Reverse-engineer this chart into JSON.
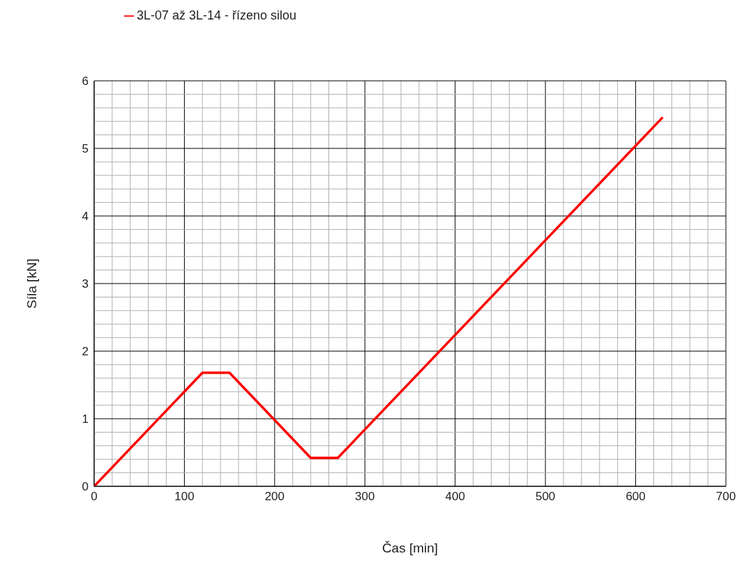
{
  "chart_data": {
    "type": "line",
    "xlabel": "Čas [min]",
    "ylabel": "Síla [kN]",
    "series": [
      {
        "name": "3L-07 až 3L-14 - řízeno silou",
        "color": "#ff0000",
        "x": [
          0,
          120,
          150,
          240,
          270,
          630
        ],
        "values": [
          0,
          1.68,
          1.68,
          0.42,
          0.42,
          5.46
        ]
      }
    ],
    "xlim": [
      0,
      700
    ],
    "xticks": [
      0,
      {
        "value": 20,
        "label": null
      },
      {
        "value": 40,
        "label": null
      },
      {
        "value": 60,
        "label": null
      },
      {
        "value": 80,
        "label": null
      },
      100,
      {
        "value": 120,
        "label": null
      },
      {
        "value": 140,
        "label": null
      },
      {
        "value": 160,
        "label": null
      },
      {
        "value": 180,
        "label": null
      },
      200,
      {
        "value": 220,
        "label": null
      },
      {
        "value": 240,
        "label": null
      },
      {
        "value": 260,
        "label": null
      },
      {
        "value": 280,
        "label": null
      },
      300,
      {
        "value": 320,
        "label": null
      },
      {
        "value": 340,
        "label": null
      },
      {
        "value": 360,
        "label": null
      },
      {
        "value": 380,
        "label": null
      },
      400,
      {
        "value": 420,
        "label": null
      },
      {
        "value": 440,
        "label": null
      },
      {
        "value": 460,
        "label": null
      },
      {
        "value": 480,
        "label": null
      },
      500,
      {
        "value": 520,
        "label": null
      },
      {
        "value": 540,
        "label": null
      },
      {
        "value": 560,
        "label": null
      },
      {
        "value": 580,
        "label": null
      },
      600,
      {
        "value": 620,
        "label": null
      },
      {
        "value": 640,
        "label": null
      },
      {
        "value": 660,
        "label": null
      },
      {
        "value": 680,
        "label": null
      },
      700
    ],
    "ylim": [
      0,
      6
    ],
    "yticks": [
      0,
      {
        "value": 0.2,
        "label": null
      },
      {
        "value": 0.4,
        "label": null
      },
      {
        "value": 0.6,
        "label": null
      },
      {
        "value": 0.8,
        "label": null
      },
      1,
      {
        "value": 1.2,
        "label": null
      },
      {
        "value": 1.4,
        "label": null
      },
      {
        "value": 1.6,
        "label": null
      },
      {
        "value": 1.8,
        "label": null
      },
      2,
      {
        "value": 2.2,
        "label": null
      },
      {
        "value": 2.4,
        "label": null
      },
      {
        "value": 2.6,
        "label": null
      },
      {
        "value": 2.8,
        "label": null
      },
      3,
      {
        "value": 3.2,
        "label": null
      },
      {
        "value": 3.4,
        "label": null
      },
      {
        "value": 3.6,
        "label": null
      },
      {
        "value": 3.8,
        "label": null
      },
      4,
      {
        "value": 4.2,
        "label": null
      },
      {
        "value": 4.4,
        "label": null
      },
      {
        "value": 4.6,
        "label": null
      },
      {
        "value": 4.8,
        "label": null
      },
      5,
      {
        "value": 5.2,
        "label": null
      },
      {
        "value": 5.4,
        "label": null
      },
      {
        "value": 5.6,
        "label": null
      },
      {
        "value": 5.8,
        "label": null
      },
      6
    ],
    "grid": true,
    "legend": "top left",
    "marker": "none",
    "line_style": "solid"
  }
}
